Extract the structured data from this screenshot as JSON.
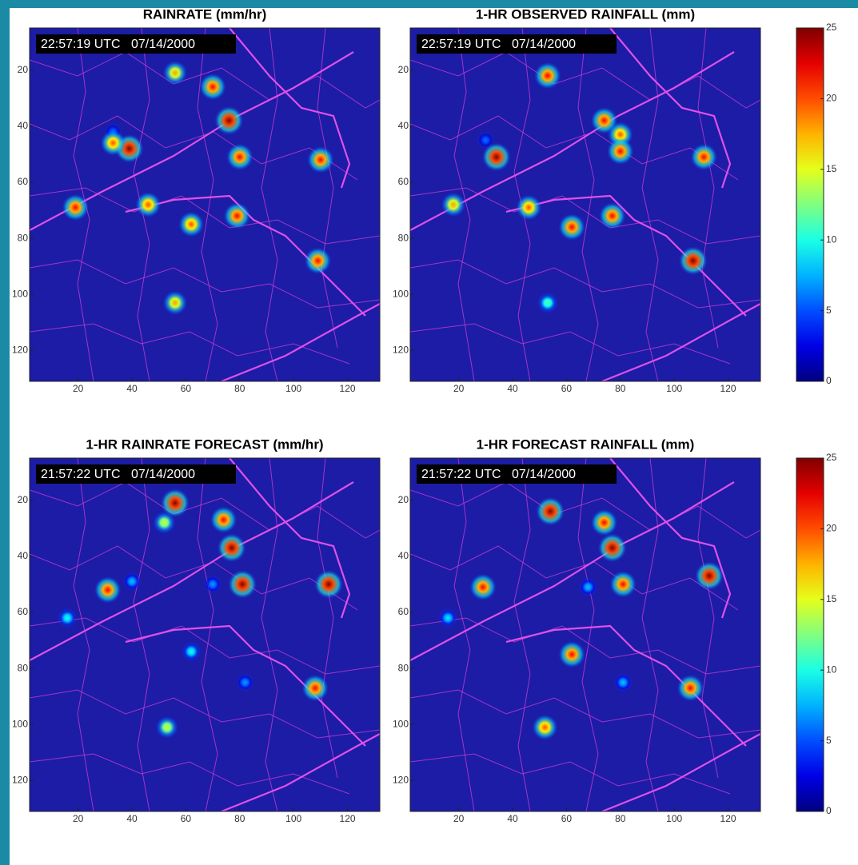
{
  "chart_data": [
    {
      "type": "heatmap",
      "title": "RAINRATE (mm/hr)",
      "timestamp": "22:57:19 UTC   07/14/2000",
      "background": "#1c1ca6",
      "xlim": [
        2,
        132
      ],
      "ylim": [
        5,
        131
      ],
      "y_reversed": true,
      "xticks": [
        20,
        40,
        60,
        80,
        100,
        120
      ],
      "yticks": [
        20,
        40,
        60,
        80,
        100,
        120
      ],
      "clim": [
        0,
        25
      ],
      "cells": [
        {
          "x": 56,
          "y": 21,
          "value": 18
        },
        {
          "x": 70,
          "y": 26,
          "value": 22
        },
        {
          "x": 76,
          "y": 38,
          "value": 25
        },
        {
          "x": 80,
          "y": 51,
          "value": 22
        },
        {
          "x": 33,
          "y": 42,
          "value": 6
        },
        {
          "x": 39,
          "y": 48,
          "value": 25
        },
        {
          "x": 33,
          "y": 46,
          "value": 20
        },
        {
          "x": 19,
          "y": 69,
          "value": 22
        },
        {
          "x": 46,
          "y": 68,
          "value": 20
        },
        {
          "x": 62,
          "y": 75,
          "value": 20
        },
        {
          "x": 79,
          "y": 72,
          "value": 22
        },
        {
          "x": 110,
          "y": 52,
          "value": 22
        },
        {
          "x": 109,
          "y": 88,
          "value": 22
        },
        {
          "x": 56,
          "y": 103,
          "value": 18
        }
      ]
    },
    {
      "type": "heatmap",
      "title": "1-HR OBSERVED RAINFALL (mm)",
      "timestamp": "22:57:19 UTC   07/14/2000",
      "background": "#1c1ca6",
      "xlim": [
        2,
        132
      ],
      "ylim": [
        5,
        131
      ],
      "y_reversed": true,
      "xticks": [
        20,
        40,
        60,
        80,
        100,
        120
      ],
      "yticks": [
        20,
        40,
        60,
        80,
        100,
        120
      ],
      "clim": [
        0,
        25
      ],
      "cells": [
        {
          "x": 53,
          "y": 22,
          "value": 22
        },
        {
          "x": 74,
          "y": 38,
          "value": 22
        },
        {
          "x": 80,
          "y": 43,
          "value": 20
        },
        {
          "x": 80,
          "y": 49,
          "value": 22
        },
        {
          "x": 30,
          "y": 45,
          "value": 6
        },
        {
          "x": 34,
          "y": 51,
          "value": 25
        },
        {
          "x": 18,
          "y": 68,
          "value": 18
        },
        {
          "x": 46,
          "y": 69,
          "value": 20
        },
        {
          "x": 62,
          "y": 76,
          "value": 22
        },
        {
          "x": 77,
          "y": 72,
          "value": 22
        },
        {
          "x": 111,
          "y": 51,
          "value": 22
        },
        {
          "x": 107,
          "y": 88,
          "value": 25
        },
        {
          "x": 53,
          "y": 103,
          "value": 12
        }
      ],
      "colorbar": {
        "lim": [
          0,
          25
        ],
        "ticks": [
          0,
          5,
          10,
          15,
          20,
          25
        ]
      }
    },
    {
      "type": "heatmap",
      "title": "1-HR RAINRATE FORECAST (mm/hr)",
      "timestamp": "21:57:22 UTC   07/14/2000",
      "background": "#1c1ca6",
      "xlim": [
        2,
        132
      ],
      "ylim": [
        5,
        131
      ],
      "y_reversed": true,
      "xticks": [
        20,
        40,
        60,
        80,
        100,
        120
      ],
      "yticks": [
        20,
        40,
        60,
        80,
        100,
        120
      ],
      "clim": [
        0,
        25
      ],
      "cells": [
        {
          "x": 56,
          "y": 21,
          "value": 25
        },
        {
          "x": 52,
          "y": 28,
          "value": 15
        },
        {
          "x": 74,
          "y": 27,
          "value": 22
        },
        {
          "x": 77,
          "y": 37,
          "value": 25
        },
        {
          "x": 81,
          "y": 50,
          "value": 25
        },
        {
          "x": 31,
          "y": 52,
          "value": 22
        },
        {
          "x": 40,
          "y": 49,
          "value": 8
        },
        {
          "x": 70,
          "y": 50,
          "value": 7
        },
        {
          "x": 16,
          "y": 62,
          "value": 10
        },
        {
          "x": 62,
          "y": 74,
          "value": 10
        },
        {
          "x": 113,
          "y": 50,
          "value": 25
        },
        {
          "x": 108,
          "y": 87,
          "value": 22
        },
        {
          "x": 82,
          "y": 85,
          "value": 7
        },
        {
          "x": 53,
          "y": 101,
          "value": 15
        }
      ]
    },
    {
      "type": "heatmap",
      "title": "1-HR FORECAST RAINFALL (mm)",
      "timestamp": "21:57:22 UTC   07/14/2000",
      "background": "#1c1ca6",
      "xlim": [
        2,
        132
      ],
      "ylim": [
        5,
        131
      ],
      "y_reversed": true,
      "xticks": [
        20,
        40,
        60,
        80,
        100,
        120
      ],
      "yticks": [
        20,
        40,
        60,
        80,
        100,
        120
      ],
      "clim": [
        0,
        25
      ],
      "cells": [
        {
          "x": 54,
          "y": 24,
          "value": 25
        },
        {
          "x": 74,
          "y": 28,
          "value": 22
        },
        {
          "x": 77,
          "y": 37,
          "value": 25
        },
        {
          "x": 81,
          "y": 50,
          "value": 22
        },
        {
          "x": 29,
          "y": 51,
          "value": 22
        },
        {
          "x": 68,
          "y": 51,
          "value": 8
        },
        {
          "x": 16,
          "y": 62,
          "value": 9
        },
        {
          "x": 62,
          "y": 75,
          "value": 22
        },
        {
          "x": 113,
          "y": 47,
          "value": 25
        },
        {
          "x": 106,
          "y": 87,
          "value": 22
        },
        {
          "x": 81,
          "y": 85,
          "value": 8
        },
        {
          "x": 52,
          "y": 101,
          "value": 20
        }
      ],
      "colorbar": {
        "lim": [
          0,
          25
        ],
        "ticks": [
          0,
          5,
          10,
          15,
          20,
          25
        ]
      }
    }
  ]
}
